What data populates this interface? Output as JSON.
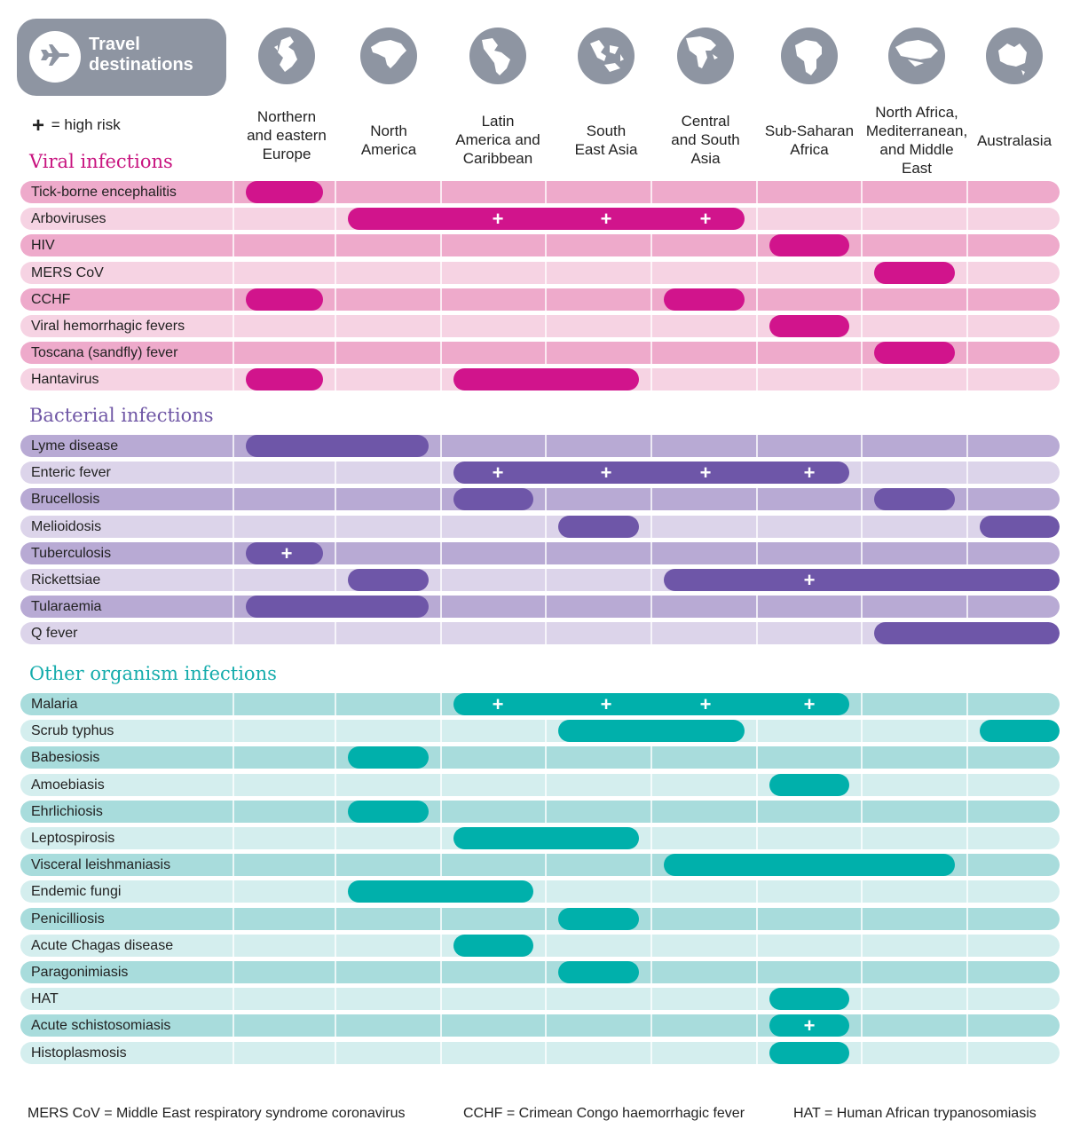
{
  "header": {
    "title": "Travel destinations"
  },
  "legend": {
    "symbol": "+",
    "text": "= high risk"
  },
  "destinations": [
    {
      "label": "Northern\nand eastern\nEurope",
      "icon": "europe-globe-icon"
    },
    {
      "label": "North\nAmerica",
      "icon": "north-america-globe-icon"
    },
    {
      "label": "Latin\nAmerica and\nCaribbean",
      "icon": "latin-america-globe-icon"
    },
    {
      "label": "South\nEast Asia",
      "icon": "south-east-asia-globe-icon"
    },
    {
      "label": "Central\nand South\nAsia",
      "icon": "south-asia-globe-icon"
    },
    {
      "label": "Sub-Saharan\nAfrica",
      "icon": "africa-globe-icon"
    },
    {
      "label": "North Africa,\nMediterranean,\nand Middle\nEast",
      "icon": "mediterranean-globe-icon"
    },
    {
      "label": "Australasia",
      "icon": "australia-globe-icon"
    }
  ],
  "colors": {
    "header_grey": "#8e95a2",
    "viral": {
      "title": "#c8137f",
      "dark": "#eeaacb",
      "light": "#f6d3e3",
      "bar": "#d1148c"
    },
    "bacterial": {
      "title": "#6f56a5",
      "dark": "#b8aad4",
      "light": "#dcd4ea",
      "bar": "#6e56a8"
    },
    "other": {
      "title": "#15acac",
      "dark": "#a8dcdc",
      "light": "#d4eeee",
      "bar": "#00b0ab"
    }
  },
  "sections": [
    {
      "key": "viral",
      "title": "Viral infections",
      "rows": [
        {
          "name": "Tick-borne encephalitis",
          "bars": [
            [
              0,
              0
            ]
          ],
          "high_risk": []
        },
        {
          "name": "Arboviruses",
          "bars": [
            [
              1,
              4
            ]
          ],
          "high_risk": [
            2,
            3,
            4
          ]
        },
        {
          "name": "HIV",
          "bars": [
            [
              5,
              5
            ]
          ],
          "high_risk": []
        },
        {
          "name": "MERS CoV",
          "bars": [
            [
              6,
              6
            ]
          ],
          "high_risk": []
        },
        {
          "name": "CCHF",
          "bars": [
            [
              0,
              0
            ],
            [
              4,
              4
            ]
          ],
          "high_risk": []
        },
        {
          "name": "Viral hemorrhagic fevers",
          "bars": [
            [
              5,
              5
            ]
          ],
          "high_risk": []
        },
        {
          "name": "Toscana (sandfly) fever",
          "bars": [
            [
              6,
              6
            ]
          ],
          "high_risk": []
        },
        {
          "name": "Hantavirus",
          "bars": [
            [
              0,
              0
            ],
            [
              2,
              3
            ]
          ],
          "high_risk": []
        }
      ]
    },
    {
      "key": "bacterial",
      "title": "Bacterial infections",
      "rows": [
        {
          "name": "Lyme disease",
          "bars": [
            [
              0,
              1
            ]
          ],
          "high_risk": []
        },
        {
          "name": "Enteric fever",
          "bars": [
            [
              2,
              5
            ]
          ],
          "high_risk": [
            2,
            3,
            4,
            5
          ]
        },
        {
          "name": "Brucellosis",
          "bars": [
            [
              2,
              2
            ],
            [
              6,
              6
            ]
          ],
          "high_risk": []
        },
        {
          "name": "Melioidosis",
          "bars": [
            [
              3,
              3
            ],
            [
              7,
              7
            ]
          ],
          "high_risk": []
        },
        {
          "name": "Tuberculosis",
          "bars": [
            [
              0,
              0
            ]
          ],
          "high_risk": [
            0
          ]
        },
        {
          "name": "Rickettsiae",
          "bars": [
            [
              1,
              1
            ],
            [
              4,
              7
            ]
          ],
          "high_risk": [
            5
          ]
        },
        {
          "name": "Tularaemia",
          "bars": [
            [
              0,
              1
            ]
          ],
          "high_risk": []
        },
        {
          "name": "Q fever",
          "bars": [
            [
              6,
              7
            ]
          ],
          "high_risk": []
        }
      ]
    },
    {
      "key": "other",
      "title": "Other organism infections",
      "rows": [
        {
          "name": "Malaria",
          "bars": [
            [
              2,
              5
            ]
          ],
          "high_risk": [
            2,
            3,
            4,
            5
          ]
        },
        {
          "name": "Scrub typhus",
          "bars": [
            [
              3,
              4
            ],
            [
              7,
              7
            ]
          ],
          "high_risk": []
        },
        {
          "name": "Babesiosis",
          "bars": [
            [
              1,
              1
            ]
          ],
          "high_risk": []
        },
        {
          "name": "Amoebiasis",
          "bars": [
            [
              5,
              5
            ]
          ],
          "high_risk": []
        },
        {
          "name": "Ehrlichiosis",
          "bars": [
            [
              1,
              1
            ]
          ],
          "high_risk": []
        },
        {
          "name": "Leptospirosis",
          "bars": [
            [
              2,
              3
            ]
          ],
          "high_risk": []
        },
        {
          "name": "Visceral leishmaniasis",
          "bars": [
            [
              4,
              6
            ]
          ],
          "high_risk": []
        },
        {
          "name": "Endemic fungi",
          "bars": [
            [
              1,
              2
            ]
          ],
          "high_risk": []
        },
        {
          "name": "Penicilliosis",
          "bars": [
            [
              3,
              3
            ]
          ],
          "high_risk": []
        },
        {
          "name": "Acute Chagas disease",
          "bars": [
            [
              2,
              2
            ]
          ],
          "high_risk": []
        },
        {
          "name": "Paragonimiasis",
          "bars": [
            [
              3,
              3
            ]
          ],
          "high_risk": []
        },
        {
          "name": "HAT",
          "bars": [
            [
              5,
              5
            ]
          ],
          "high_risk": []
        },
        {
          "name": "Acute schistosomiasis",
          "bars": [
            [
              5,
              5
            ]
          ],
          "high_risk": [
            5
          ]
        },
        {
          "name": "Histoplasmosis",
          "bars": [
            [
              5,
              5
            ]
          ],
          "high_risk": []
        }
      ]
    }
  ],
  "footnotes": [
    "MERS CoV = Middle East respiratory syndrome coronavirus",
    "CCHF = Crimean Congo haemorrhagic fever",
    "HAT = Human African trypanosomiasis"
  ]
}
